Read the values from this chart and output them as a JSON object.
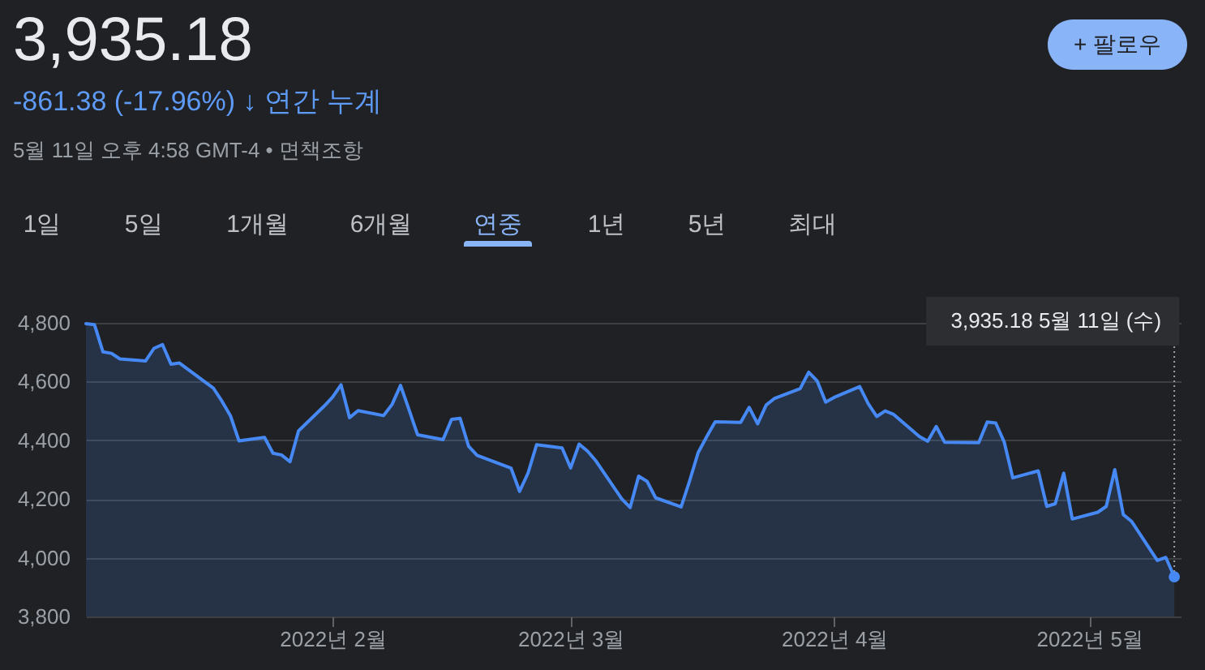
{
  "chart_data": {
    "type": "area",
    "title": "3,935.18",
    "subtitle": "-861.38 (-17.96%) ↓ 연간 누계",
    "annotations": [
      "5월 11일 오후 4:58 GMT-4 • 면책조항",
      "+ 팔로우",
      "1일",
      "5일",
      "1개월",
      "6개월",
      "연중",
      "1년",
      "5년",
      "최대",
      {
        "text": "3,935.18 5월 11일 (수)",
        "x": "2022-05-11",
        "y": 3935.18
      }
    ],
    "x": [
      "2022-01-03",
      "2022-01-04",
      "2022-01-05",
      "2022-01-06",
      "2022-01-07",
      "2022-01-10",
      "2022-01-11",
      "2022-01-12",
      "2022-01-13",
      "2022-01-14",
      "2022-01-18",
      "2022-01-19",
      "2022-01-20",
      "2022-01-21",
      "2022-01-24",
      "2022-01-25",
      "2022-01-26",
      "2022-01-27",
      "2022-01-28",
      "2022-01-31",
      "2022-02-01",
      "2022-02-02",
      "2022-02-03",
      "2022-02-04",
      "2022-02-07",
      "2022-02-08",
      "2022-02-09",
      "2022-02-10",
      "2022-02-11",
      "2022-02-14",
      "2022-02-15",
      "2022-02-16",
      "2022-02-17",
      "2022-02-18",
      "2022-02-22",
      "2022-02-23",
      "2022-02-24",
      "2022-02-25",
      "2022-02-28",
      "2022-03-01",
      "2022-03-02",
      "2022-03-03",
      "2022-03-04",
      "2022-03-07",
      "2022-03-08",
      "2022-03-09",
      "2022-03-10",
      "2022-03-11",
      "2022-03-14",
      "2022-03-15",
      "2022-03-16",
      "2022-03-17",
      "2022-03-18",
      "2022-03-21",
      "2022-03-22",
      "2022-03-23",
      "2022-03-24",
      "2022-03-25",
      "2022-03-28",
      "2022-03-29",
      "2022-03-30",
      "2022-03-31",
      "2022-04-01",
      "2022-04-04",
      "2022-04-05",
      "2022-04-06",
      "2022-04-07",
      "2022-04-08",
      "2022-04-11",
      "2022-04-12",
      "2022-04-13",
      "2022-04-14",
      "2022-04-18",
      "2022-04-19",
      "2022-04-20",
      "2022-04-21",
      "2022-04-22",
      "2022-04-25",
      "2022-04-26",
      "2022-04-27",
      "2022-04-28",
      "2022-04-29",
      "2022-05-02",
      "2022-05-03",
      "2022-05-04",
      "2022-05-05",
      "2022-05-06",
      "2022-05-09",
      "2022-05-10",
      "2022-05-11"
    ],
    "series": [
      {
        "color": "#4689f5",
        "values": [
          4797,
          4794,
          4701,
          4696,
          4677,
          4670,
          4713,
          4726,
          4659,
          4663,
          4577,
          4533,
          4483,
          4398,
          4410,
          4356,
          4350,
          4327,
          4432,
          4516,
          4547,
          4589,
          4477,
          4501,
          4484,
          4522,
          4587,
          4504,
          4419,
          4402,
          4471,
          4475,
          4380,
          4349,
          4305,
          4226,
          4289,
          4385,
          4374,
          4306,
          4387,
          4363,
          4329,
          4201,
          4171,
          4278,
          4260,
          4204,
          4173,
          4262,
          4358,
          4412,
          4463,
          4461,
          4512,
          4456,
          4520,
          4543,
          4576,
          4632,
          4602,
          4530,
          4546,
          4583,
          4525,
          4481,
          4500,
          4488,
          4413,
          4397,
          4447,
          4393,
          4392,
          4462,
          4459,
          4394,
          4272,
          4296,
          4175,
          4184,
          4288,
          4132,
          4155,
          4175,
          4300,
          4147,
          4123,
          3991,
          4001,
          3935.18
        ]
      }
    ],
    "xlim": [
      "2022-01-03",
      "2022-05-11T18:00"
    ],
    "xticks": [
      {
        "value": "2022-02-01",
        "label": "2022년 2월"
      },
      {
        "value": "2022-03-01",
        "label": "2022년 3월"
      },
      {
        "value": "2022-04-01",
        "label": "2022년 4월"
      },
      {
        "value": "2022-05-01",
        "label": "2022년 5월"
      }
    ],
    "ylim": [
      3800,
      4800
    ],
    "yticks": [
      {
        "value": 3800,
        "label": "3,800"
      },
      {
        "value": 4000,
        "label": "4,000"
      },
      {
        "value": 4200,
        "label": "4,200"
      },
      {
        "value": 4400,
        "label": "4,400"
      },
      {
        "value": 4600,
        "label": "4,600"
      },
      {
        "value": 4800,
        "label": "4,800"
      }
    ],
    "grid": "y"
  }
}
